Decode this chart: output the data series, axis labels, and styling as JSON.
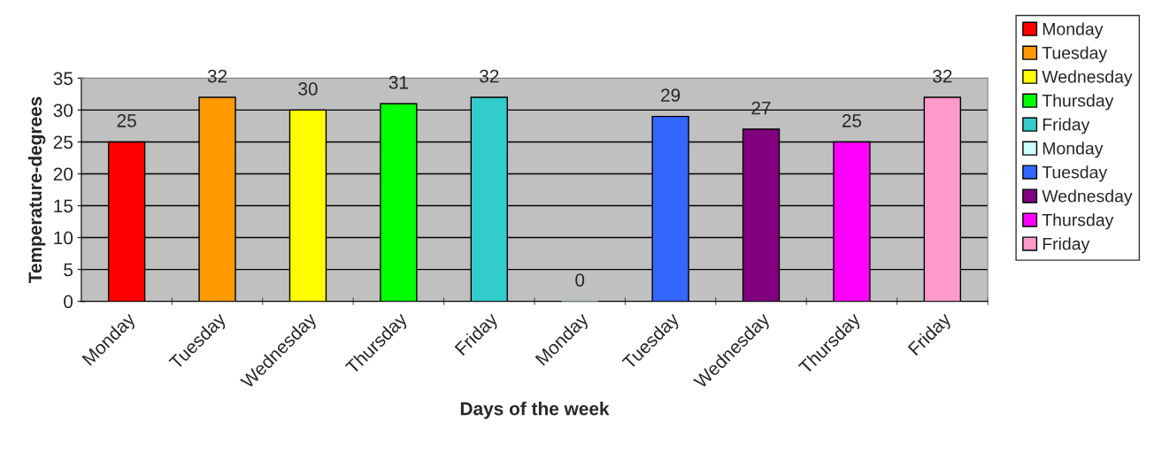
{
  "chart_data": {
    "type": "bar",
    "xlabel": "Days of the week",
    "ylabel": "Temperature-degrees",
    "categories": [
      "Monday",
      "Tuesday",
      "Wednesday",
      "Thursday",
      "Friday",
      "Monday",
      "Tuesday",
      "Wednesday",
      "Thursday",
      "Friday"
    ],
    "series": [
      {
        "name": "Monday",
        "color": "#ff0000",
        "values": [
          25,
          null,
          null,
          null,
          null,
          null,
          null,
          null,
          null,
          null
        ]
      },
      {
        "name": "Tuesday",
        "color": "#ff9900",
        "values": [
          null,
          32,
          null,
          null,
          null,
          null,
          null,
          null,
          null,
          null
        ]
      },
      {
        "name": "Wednesday",
        "color": "#ffff00",
        "values": [
          null,
          null,
          30,
          null,
          null,
          null,
          null,
          null,
          null,
          null
        ]
      },
      {
        "name": "Thursday",
        "color": "#00ff00",
        "values": [
          null,
          null,
          null,
          31,
          null,
          null,
          null,
          null,
          null,
          null
        ]
      },
      {
        "name": "Friday",
        "color": "#33cccc",
        "values": [
          null,
          null,
          null,
          null,
          32,
          null,
          null,
          null,
          null,
          null
        ]
      },
      {
        "name": "Monday",
        "color": "#ccffff",
        "values": [
          null,
          null,
          null,
          null,
          null,
          0,
          null,
          null,
          null,
          null
        ]
      },
      {
        "name": "Tuesday",
        "color": "#3366ff",
        "values": [
          null,
          null,
          null,
          null,
          null,
          null,
          29,
          null,
          null,
          null
        ]
      },
      {
        "name": "Wednesday",
        "color": "#800080",
        "values": [
          null,
          null,
          null,
          null,
          null,
          null,
          null,
          27,
          null,
          null
        ]
      },
      {
        "name": "Thursday",
        "color": "#ff00ff",
        "values": [
          null,
          null,
          null,
          null,
          null,
          null,
          null,
          null,
          25,
          null
        ]
      },
      {
        "name": "Friday",
        "color": "#ff99cc",
        "values": [
          null,
          null,
          null,
          null,
          null,
          null,
          null,
          null,
          null,
          32
        ]
      }
    ],
    "ylim": [
      0,
      35
    ],
    "yticks": [
      0,
      5,
      10,
      15,
      20,
      25,
      30,
      35
    ],
    "grid": "y",
    "legend": "right",
    "data_labels": true
  }
}
